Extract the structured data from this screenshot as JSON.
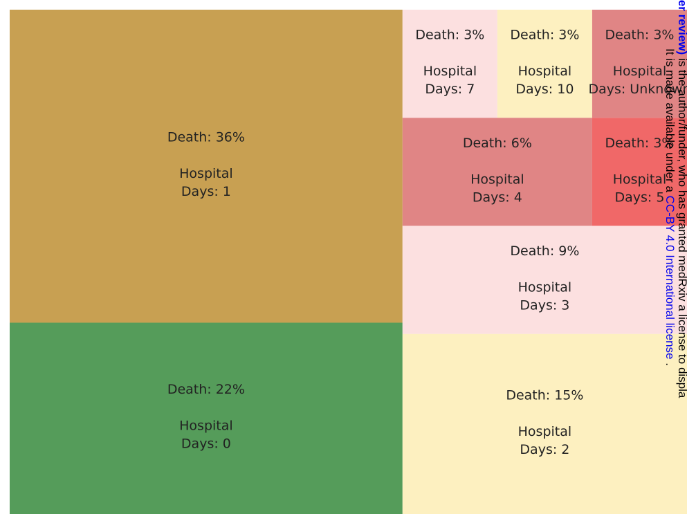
{
  "chart_data": {
    "type": "treemap",
    "values": [
      36,
      22,
      15,
      9,
      6,
      3,
      3,
      3,
      3
    ],
    "value_labels": [
      "Death: 36%",
      "Death: 22%",
      "Death: 15%",
      "Death: 9%",
      "Death: 6%",
      "Death: 3%",
      "Death: 3%",
      "Death: 3%",
      "Death: 3%"
    ],
    "categories": [
      "Hospital Days: 1",
      "Hospital Days: 0",
      "Hospital Days: 2",
      "Hospital Days: 3",
      "Hospital Days: 4",
      "Hospital Days: 5",
      "Hospital Days: 7",
      "Hospital Days: 10",
      "Hospital Days: Unknown"
    ],
    "colors": [
      "#c8a052",
      "#559c5a",
      "#fdf0c0",
      "#fce0e0",
      "#e08585",
      "#f06868",
      "#fce0e0",
      "#fdf0c0",
      "#e08585"
    ]
  },
  "watermark": {
    "line1": [
      {
        "link": "peer review)"
      },
      {
        "text": " is the author/funder, who has granted medRxiv a license to displa"
      }
    ],
    "line2": [
      {
        "text": "It is made available under a "
      },
      {
        "link": "CC-BY 4.0 International license"
      },
      {
        "text": " ."
      }
    ]
  }
}
